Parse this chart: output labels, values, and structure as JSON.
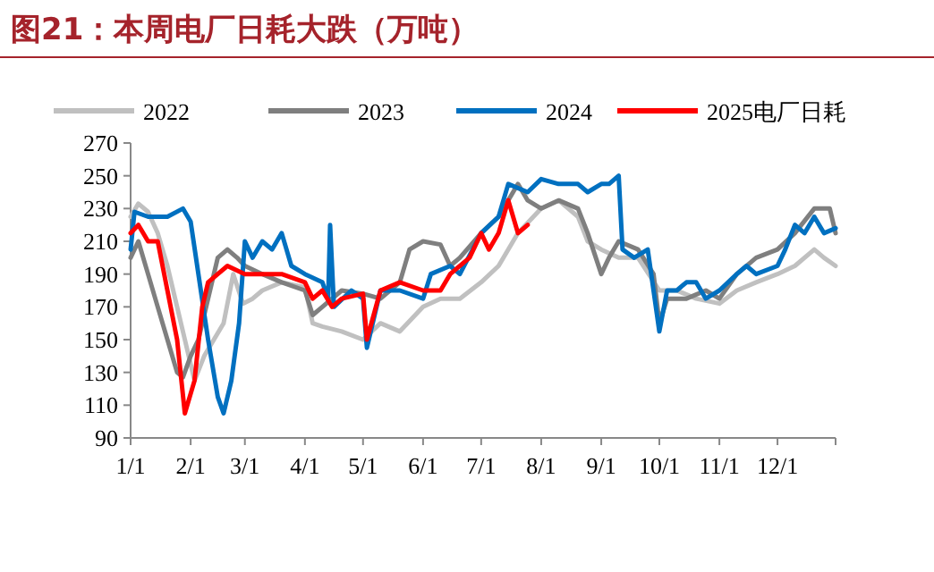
{
  "chart_data": {
    "type": "line",
    "title": "图21：本周电厂日耗大跌（万吨）",
    "xlim": [
      "--01-01",
      "--12-31"
    ],
    "xticks": [
      {
        "value": "--01-01",
        "label": "1/1"
      },
      {
        "value": "--02-01",
        "label": "2/1"
      },
      {
        "value": "--03-01",
        "label": "3/1"
      },
      {
        "value": "--04-01",
        "label": "4/1"
      },
      {
        "value": "--05-01",
        "label": "5/1"
      },
      {
        "value": "--06-01",
        "label": "6/1"
      },
      {
        "value": "--07-01",
        "label": "7/1"
      },
      {
        "value": "--08-01",
        "label": "8/1"
      },
      {
        "value": "--09-01",
        "label": "9/1"
      },
      {
        "value": "--10-01",
        "label": "10/1"
      },
      {
        "value": "--11-01",
        "label": "11/1"
      },
      {
        "value": "--12-01",
        "label": "12/1"
      }
    ],
    "ylim": [
      90,
      270
    ],
    "yticks": [
      90,
      110,
      130,
      150,
      170,
      190,
      210,
      230,
      250,
      270
    ],
    "legend": "top",
    "grid": false,
    "marker": "none",
    "line_style": "solid",
    "series": [
      {
        "name": "2022",
        "color": "#c0c0c0",
        "x": [
          "--01-01",
          "--01-05",
          "--01-10",
          "--01-15",
          "--01-20",
          "--01-25",
          "--01-29",
          "--02-03",
          "--02-08",
          "--02-13",
          "--02-18",
          "--02-23",
          "--02-28",
          "--03-05",
          "--03-10",
          "--03-20",
          "--04-01",
          "--04-05",
          "--04-10",
          "--04-20",
          "--05-01",
          "--05-10",
          "--05-20",
          "--06-01",
          "--06-10",
          "--06-20",
          "--07-01",
          "--07-10",
          "--07-20",
          "--08-01",
          "--08-10",
          "--08-20",
          "--08-25",
          "--09-01",
          "--09-10",
          "--09-20",
          "--10-01",
          "--10-10",
          "--10-20",
          "--11-01",
          "--11-10",
          "--11-20",
          "--12-01",
          "--12-10",
          "--12-20",
          "--12-25",
          "--12-31"
        ],
        "values": [
          225,
          233,
          228,
          215,
          195,
          170,
          150,
          125,
          140,
          150,
          160,
          190,
          172,
          175,
          180,
          185,
          182,
          160,
          158,
          155,
          150,
          160,
          155,
          170,
          175,
          175,
          185,
          195,
          215,
          230,
          235,
          225,
          210,
          205,
          200,
          200,
          180,
          180,
          175,
          172,
          180,
          185,
          190,
          195,
          205,
          200,
          195
        ]
      },
      {
        "name": "2023",
        "color": "#7f7f7f",
        "x": [
          "--01-01",
          "--01-05",
          "--01-10",
          "--01-15",
          "--01-20",
          "--01-25",
          "--01-28",
          "--02-01",
          "--02-05",
          "--02-10",
          "--02-15",
          "--02-20",
          "--02-25",
          "--03-01",
          "--03-10",
          "--03-20",
          "--04-01",
          "--04-05",
          "--04-10",
          "--04-20",
          "--05-01",
          "--05-10",
          "--05-20",
          "--05-25",
          "--06-01",
          "--06-10",
          "--06-15",
          "--06-20",
          "--07-01",
          "--07-10",
          "--07-20",
          "--07-25",
          "--08-01",
          "--08-10",
          "--08-20",
          "--08-25",
          "--09-01",
          "--09-05",
          "--09-10",
          "--09-20",
          "--09-28",
          "--10-01",
          "--10-05",
          "--10-15",
          "--10-25",
          "--11-01",
          "--11-10",
          "--11-20",
          "--12-01",
          "--12-10",
          "--12-20",
          "--12-28",
          "--12-31"
        ],
        "values": [
          200,
          210,
          190,
          170,
          150,
          130,
          127,
          140,
          150,
          175,
          200,
          205,
          200,
          195,
          190,
          185,
          180,
          165,
          170,
          180,
          178,
          175,
          185,
          205,
          210,
          208,
          195,
          200,
          215,
          225,
          245,
          235,
          230,
          235,
          230,
          215,
          190,
          200,
          210,
          205,
          190,
          160,
          175,
          175,
          180,
          175,
          190,
          200,
          205,
          215,
          230,
          230,
          215
        ]
      },
      {
        "name": "2024",
        "color": "#0070c0",
        "x": [
          "--01-01",
          "--01-03",
          "--01-10",
          "--01-20",
          "--01-28",
          "--02-01",
          "--02-05",
          "--02-10",
          "--02-15",
          "--02-18",
          "--02-22",
          "--02-26",
          "--03-01",
          "--03-05",
          "--03-10",
          "--03-15",
          "--03-20",
          "--03-25",
          "--04-01",
          "--04-10",
          "--04-13",
          "--04-14",
          "--04-16",
          "--04-25",
          "--05-01",
          "--05-03",
          "--05-10",
          "--05-20",
          "--06-01",
          "--06-05",
          "--06-15",
          "--06-20",
          "--07-01",
          "--07-10",
          "--07-15",
          "--07-25",
          "--08-01",
          "--08-10",
          "--08-20",
          "--08-25",
          "--09-01",
          "--09-05",
          "--09-10",
          "--09-12",
          "--09-18",
          "--09-25",
          "--10-01",
          "--10-05",
          "--10-10",
          "--10-15",
          "--10-20",
          "--10-25",
          "--11-01",
          "--11-10",
          "--11-15",
          "--11-20",
          "--12-01",
          "--12-05",
          "--12-10",
          "--12-15",
          "--12-20",
          "--12-25",
          "--12-31"
        ],
        "values": [
          205,
          228,
          225,
          225,
          230,
          222,
          190,
          150,
          115,
          105,
          125,
          160,
          210,
          200,
          210,
          205,
          215,
          195,
          190,
          185,
          175,
          220,
          170,
          180,
          175,
          145,
          180,
          180,
          175,
          190,
          195,
          190,
          215,
          225,
          245,
          240,
          248,
          245,
          245,
          240,
          245,
          245,
          250,
          205,
          200,
          205,
          155,
          180,
          180,
          185,
          185,
          175,
          180,
          190,
          195,
          190,
          195,
          205,
          220,
          215,
          225,
          215,
          218
        ]
      },
      {
        "name": "2025电厂日耗",
        "color": "#ff0000",
        "x": [
          "--01-01",
          "--01-05",
          "--01-10",
          "--01-15",
          "--01-20",
          "--01-25",
          "--01-29",
          "--02-03",
          "--02-07",
          "--02-10",
          "--02-15",
          "--02-20",
          "--03-01",
          "--03-10",
          "--03-20",
          "--04-01",
          "--04-05",
          "--04-10",
          "--04-15",
          "--04-20",
          "--05-01",
          "--05-03",
          "--05-10",
          "--05-20",
          "--06-01",
          "--06-10",
          "--06-15",
          "--06-25",
          "--07-01",
          "--07-05",
          "--07-10",
          "--07-15",
          "--07-20",
          "--07-25"
        ],
        "values": [
          215,
          220,
          210,
          210,
          180,
          150,
          105,
          125,
          170,
          185,
          190,
          195,
          190,
          190,
          190,
          185,
          175,
          180,
          170,
          175,
          178,
          150,
          180,
          185,
          180,
          180,
          190,
          200,
          215,
          205,
          215,
          235,
          215,
          220
        ]
      }
    ]
  }
}
